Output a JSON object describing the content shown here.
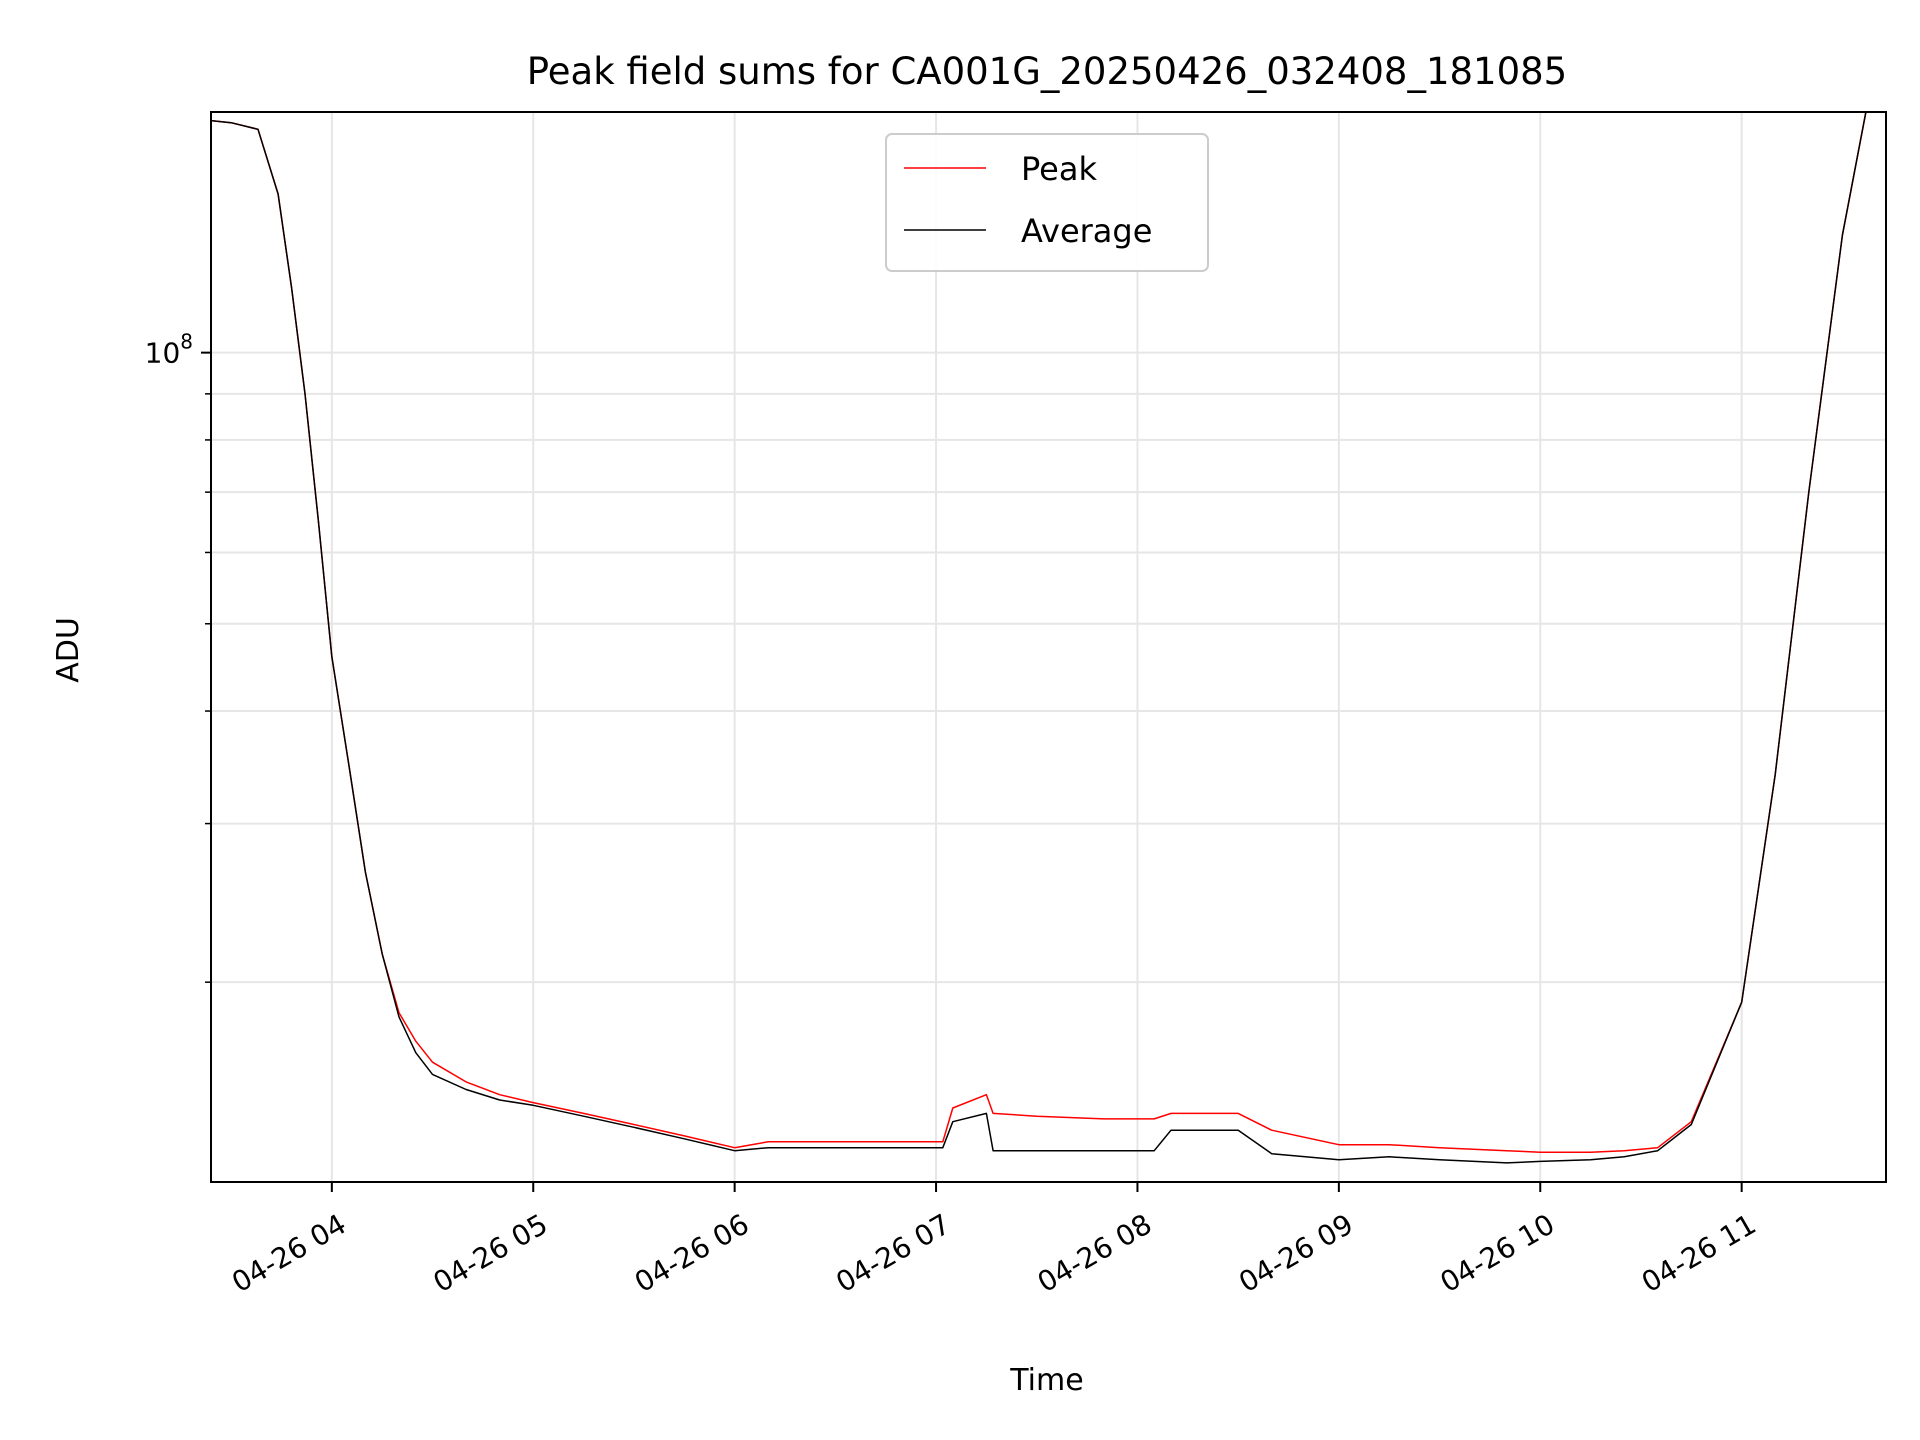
{
  "chart_data": {
    "type": "line",
    "title": "Peak field sums for CA001G_20250426_032408_181085",
    "xlabel": "Time",
    "ylabel": "ADU",
    "y_scale": "log",
    "grid": true,
    "legend_position": "top-center",
    "x_tick_labels": [
      "04-26 04",
      "04-26 05",
      "04-26 06",
      "04-26 07",
      "04-26 08",
      "04-26 09",
      "04-26 10",
      "04-26 11"
    ],
    "y_tick_label": {
      "base": "10",
      "exponent": "8",
      "value": 100000000
    },
    "xlim": [
      "2025-04-26T03:24",
      "2025-04-26T11:43"
    ],
    "ylim": [
      12000000,
      185000000
    ],
    "series": [
      {
        "name": "Peak",
        "color": "#ff0000",
        "x": [
          "2025-04-26T03:24",
          "2025-04-26T03:30",
          "2025-04-26T03:38",
          "2025-04-26T03:44",
          "2025-04-26T03:48",
          "2025-04-26T03:52",
          "2025-04-26T03:56",
          "2025-04-26T04:00",
          "2025-04-26T04:05",
          "2025-04-26T04:10",
          "2025-04-26T04:15",
          "2025-04-26T04:20",
          "2025-04-26T04:25",
          "2025-04-26T04:30",
          "2025-04-26T04:40",
          "2025-04-26T04:50",
          "2025-04-26T05:00",
          "2025-04-26T05:15",
          "2025-04-26T05:30",
          "2025-04-26T05:45",
          "2025-04-26T06:00",
          "2025-04-26T06:10",
          "2025-04-26T06:30",
          "2025-04-26T06:50",
          "2025-04-26T07:02",
          "2025-04-26T07:05",
          "2025-04-26T07:15",
          "2025-04-26T07:17",
          "2025-04-26T07:30",
          "2025-04-26T07:50",
          "2025-04-26T08:05",
          "2025-04-26T08:10",
          "2025-04-26T08:30",
          "2025-04-26T08:40",
          "2025-04-26T09:00",
          "2025-04-26T09:15",
          "2025-04-26T09:30",
          "2025-04-26T09:50",
          "2025-04-26T10:00",
          "2025-04-26T10:15",
          "2025-04-26T10:25",
          "2025-04-26T10:35",
          "2025-04-26T10:45",
          "2025-04-26T11:00",
          "2025-04-26T11:10",
          "2025-04-26T11:20",
          "2025-04-26T11:30",
          "2025-04-26T11:37"
        ],
        "y": [
          181000000,
          180000000,
          177000000,
          150000000,
          118000000,
          90000000,
          65000000,
          46000000,
          35000000,
          26500000,
          21500000,
          18500000,
          17200000,
          16300000,
          15500000,
          15000000,
          14700000,
          14300000,
          13900000,
          13500000,
          13100000,
          13300000,
          13300000,
          13300000,
          13300000,
          14500000,
          15000000,
          14300000,
          14200000,
          14100000,
          14100000,
          14300000,
          14300000,
          13700000,
          13200000,
          13200000,
          13100000,
          13000000,
          12950000,
          12950000,
          13000000,
          13100000,
          14000000,
          19000000,
          34000000,
          70000000,
          135000000,
          185000000
        ]
      },
      {
        "name": "Average",
        "color": "#000000",
        "x": [
          "2025-04-26T03:24",
          "2025-04-26T03:30",
          "2025-04-26T03:38",
          "2025-04-26T03:44",
          "2025-04-26T03:48",
          "2025-04-26T03:52",
          "2025-04-26T03:56",
          "2025-04-26T04:00",
          "2025-04-26T04:05",
          "2025-04-26T04:10",
          "2025-04-26T04:15",
          "2025-04-26T04:20",
          "2025-04-26T04:25",
          "2025-04-26T04:30",
          "2025-04-26T04:40",
          "2025-04-26T04:50",
          "2025-04-26T05:00",
          "2025-04-26T05:15",
          "2025-04-26T05:30",
          "2025-04-26T05:45",
          "2025-04-26T06:00",
          "2025-04-26T06:10",
          "2025-04-26T06:30",
          "2025-04-26T06:50",
          "2025-04-26T07:02",
          "2025-04-26T07:05",
          "2025-04-26T07:15",
          "2025-04-26T07:17",
          "2025-04-26T07:30",
          "2025-04-26T07:50",
          "2025-04-26T08:05",
          "2025-04-26T08:10",
          "2025-04-26T08:30",
          "2025-04-26T08:40",
          "2025-04-26T09:00",
          "2025-04-26T09:15",
          "2025-04-26T09:30",
          "2025-04-26T09:50",
          "2025-04-26T10:00",
          "2025-04-26T10:15",
          "2025-04-26T10:25",
          "2025-04-26T10:35",
          "2025-04-26T10:45",
          "2025-04-26T11:00",
          "2025-04-26T11:10",
          "2025-04-26T11:20",
          "2025-04-26T11:30",
          "2025-04-26T11:37"
        ],
        "y": [
          181000000,
          180000000,
          177000000,
          150000000,
          118000000,
          90000000,
          65000000,
          46000000,
          35000000,
          26500000,
          21500000,
          18300000,
          16700000,
          15800000,
          15200000,
          14800000,
          14600000,
          14200000,
          13800000,
          13400000,
          13000000,
          13100000,
          13100000,
          13100000,
          13100000,
          14000000,
          14300000,
          13000000,
          13000000,
          13000000,
          13000000,
          13700000,
          13700000,
          12900000,
          12700000,
          12800000,
          12700000,
          12600000,
          12650000,
          12700000,
          12800000,
          13000000,
          13900000,
          19000000,
          34000000,
          70000000,
          135000000,
          185000000
        ]
      }
    ]
  }
}
